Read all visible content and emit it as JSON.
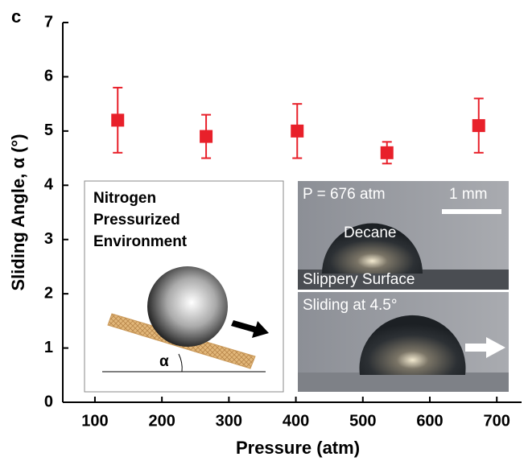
{
  "chart_data": {
    "type": "scatter",
    "panel_label": "c",
    "x_label": "Pressure (atm)",
    "y_label": "Sliding Angle, α (°)",
    "x": [
      134,
      266,
      402,
      536,
      673
    ],
    "values": [
      5.2,
      4.9,
      5.0,
      4.6,
      5.1
    ],
    "errors": [
      0.6,
      0.4,
      0.5,
      0.2,
      0.5
    ],
    "color": "#e8202a",
    "xlim": [
      52,
      737
    ],
    "ylim": [
      0,
      7
    ],
    "xticks": [
      100,
      200,
      300,
      400,
      500,
      600,
      700
    ],
    "yticks": [
      0,
      1,
      2,
      3,
      4,
      5,
      6,
      7
    ],
    "annotations": {
      "environment": [
        "Nitrogen",
        "Pressurized",
        "Environment"
      ],
      "angle_symbol": "α",
      "pressure": "P = 676 atm",
      "scale_bar": "1 mm",
      "droplet": "Decane",
      "surface": "Slippery Surface",
      "sliding": "Sliding at 4.5°"
    }
  }
}
